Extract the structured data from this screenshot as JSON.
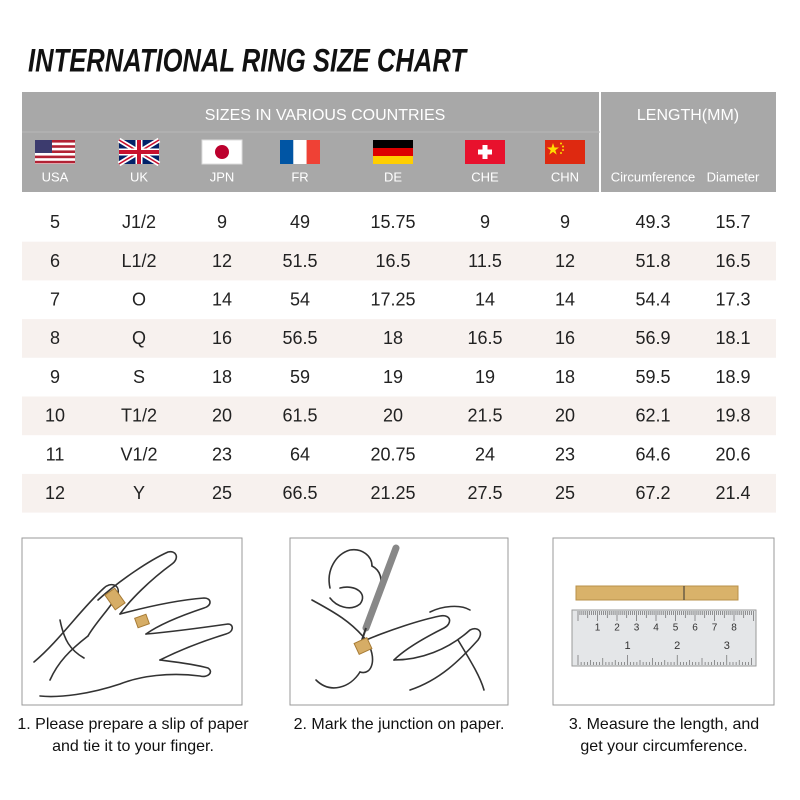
{
  "header": {
    "title": "INTERNATIONAL RING SIZE CHART"
  },
  "table": {
    "group_headers": [
      "SIZES IN VARIOUS COUNTRIES",
      "LENGTH(MM)"
    ],
    "columns": [
      "USA",
      "UK",
      "JPN",
      "FR",
      "DE",
      "CHE",
      "CHN",
      "Circumference",
      "Diameter"
    ],
    "rows": [
      [
        "5",
        "J1/2",
        "9",
        "49",
        "15.75",
        "9",
        "9",
        "49.3",
        "15.7"
      ],
      [
        "6",
        "L1/2",
        "12",
        "51.5",
        "16.5",
        "11.5",
        "12",
        "51.8",
        "16.5"
      ],
      [
        "7",
        "O",
        "14",
        "54",
        "17.25",
        "14",
        "14",
        "54.4",
        "17.3"
      ],
      [
        "8",
        "Q",
        "16",
        "56.5",
        "18",
        "16.5",
        "16",
        "56.9",
        "18.1"
      ],
      [
        "9",
        "S",
        "18",
        "59",
        "19",
        "19",
        "18",
        "59.5",
        "18.9"
      ],
      [
        "10",
        "T1/2",
        "20",
        "61.5",
        "20",
        "21.5",
        "20",
        "62.1",
        "19.8"
      ],
      [
        "11",
        "V1/2",
        "23",
        "64",
        "20.75",
        "24",
        "23",
        "64.6",
        "20.6"
      ],
      [
        "12",
        "Y",
        "25",
        "66.5",
        "21.25",
        "27.5",
        "25",
        "67.2",
        "21.4"
      ]
    ]
  },
  "steps": [
    {
      "lines": [
        "1. Please prepare a slip of paper",
        "and tie it to your finger."
      ]
    },
    {
      "lines": [
        "2. Mark the junction on paper."
      ]
    },
    {
      "lines": [
        "3. Measure the length, and",
        "get your circumference."
      ],
      "ruler": {
        "cm_labels": [
          "1",
          "2",
          "3",
          "4",
          "5",
          "6",
          "7",
          "8"
        ],
        "inch_labels": [
          "1",
          "2",
          "3"
        ]
      }
    }
  ]
}
